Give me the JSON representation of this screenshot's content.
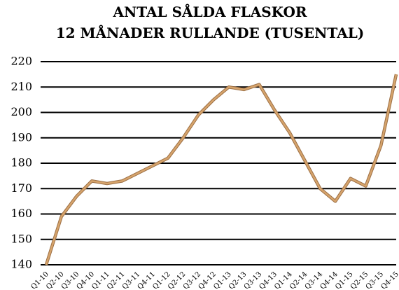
{
  "chart_data": {
    "type": "line",
    "title": "ANTAL SÅLDA FLASKOR",
    "subtitle": "12 MÅNADER RULLANDE (TUSENTAL)",
    "categories": [
      "Q1-10",
      "Q2-10",
      "Q3-10",
      "Q4-10",
      "Q1-11",
      "Q2-11",
      "Q3-11",
      "Q4-11",
      "Q1-12",
      "Q2-12",
      "Q3-12",
      "Q4-12",
      "Q1-13",
      "Q2-13",
      "Q3-13",
      "Q4-13",
      "Q1-14",
      "Q2-14",
      "Q3-14",
      "Q4-14",
      "Q1-15",
      "Q2-15",
      "Q3-15",
      "Q4-15"
    ],
    "values": [
      140,
      159,
      167,
      173,
      172,
      173,
      176,
      179,
      182,
      190,
      199,
      205,
      210,
      209,
      211,
      201,
      192,
      181,
      170,
      165,
      174,
      171,
      187,
      215
    ],
    "color": "#d6a46c",
    "ylim": [
      140,
      220
    ],
    "yticks": [
      140,
      150,
      160,
      170,
      180,
      190,
      200,
      210,
      220
    ],
    "grid": true
  }
}
